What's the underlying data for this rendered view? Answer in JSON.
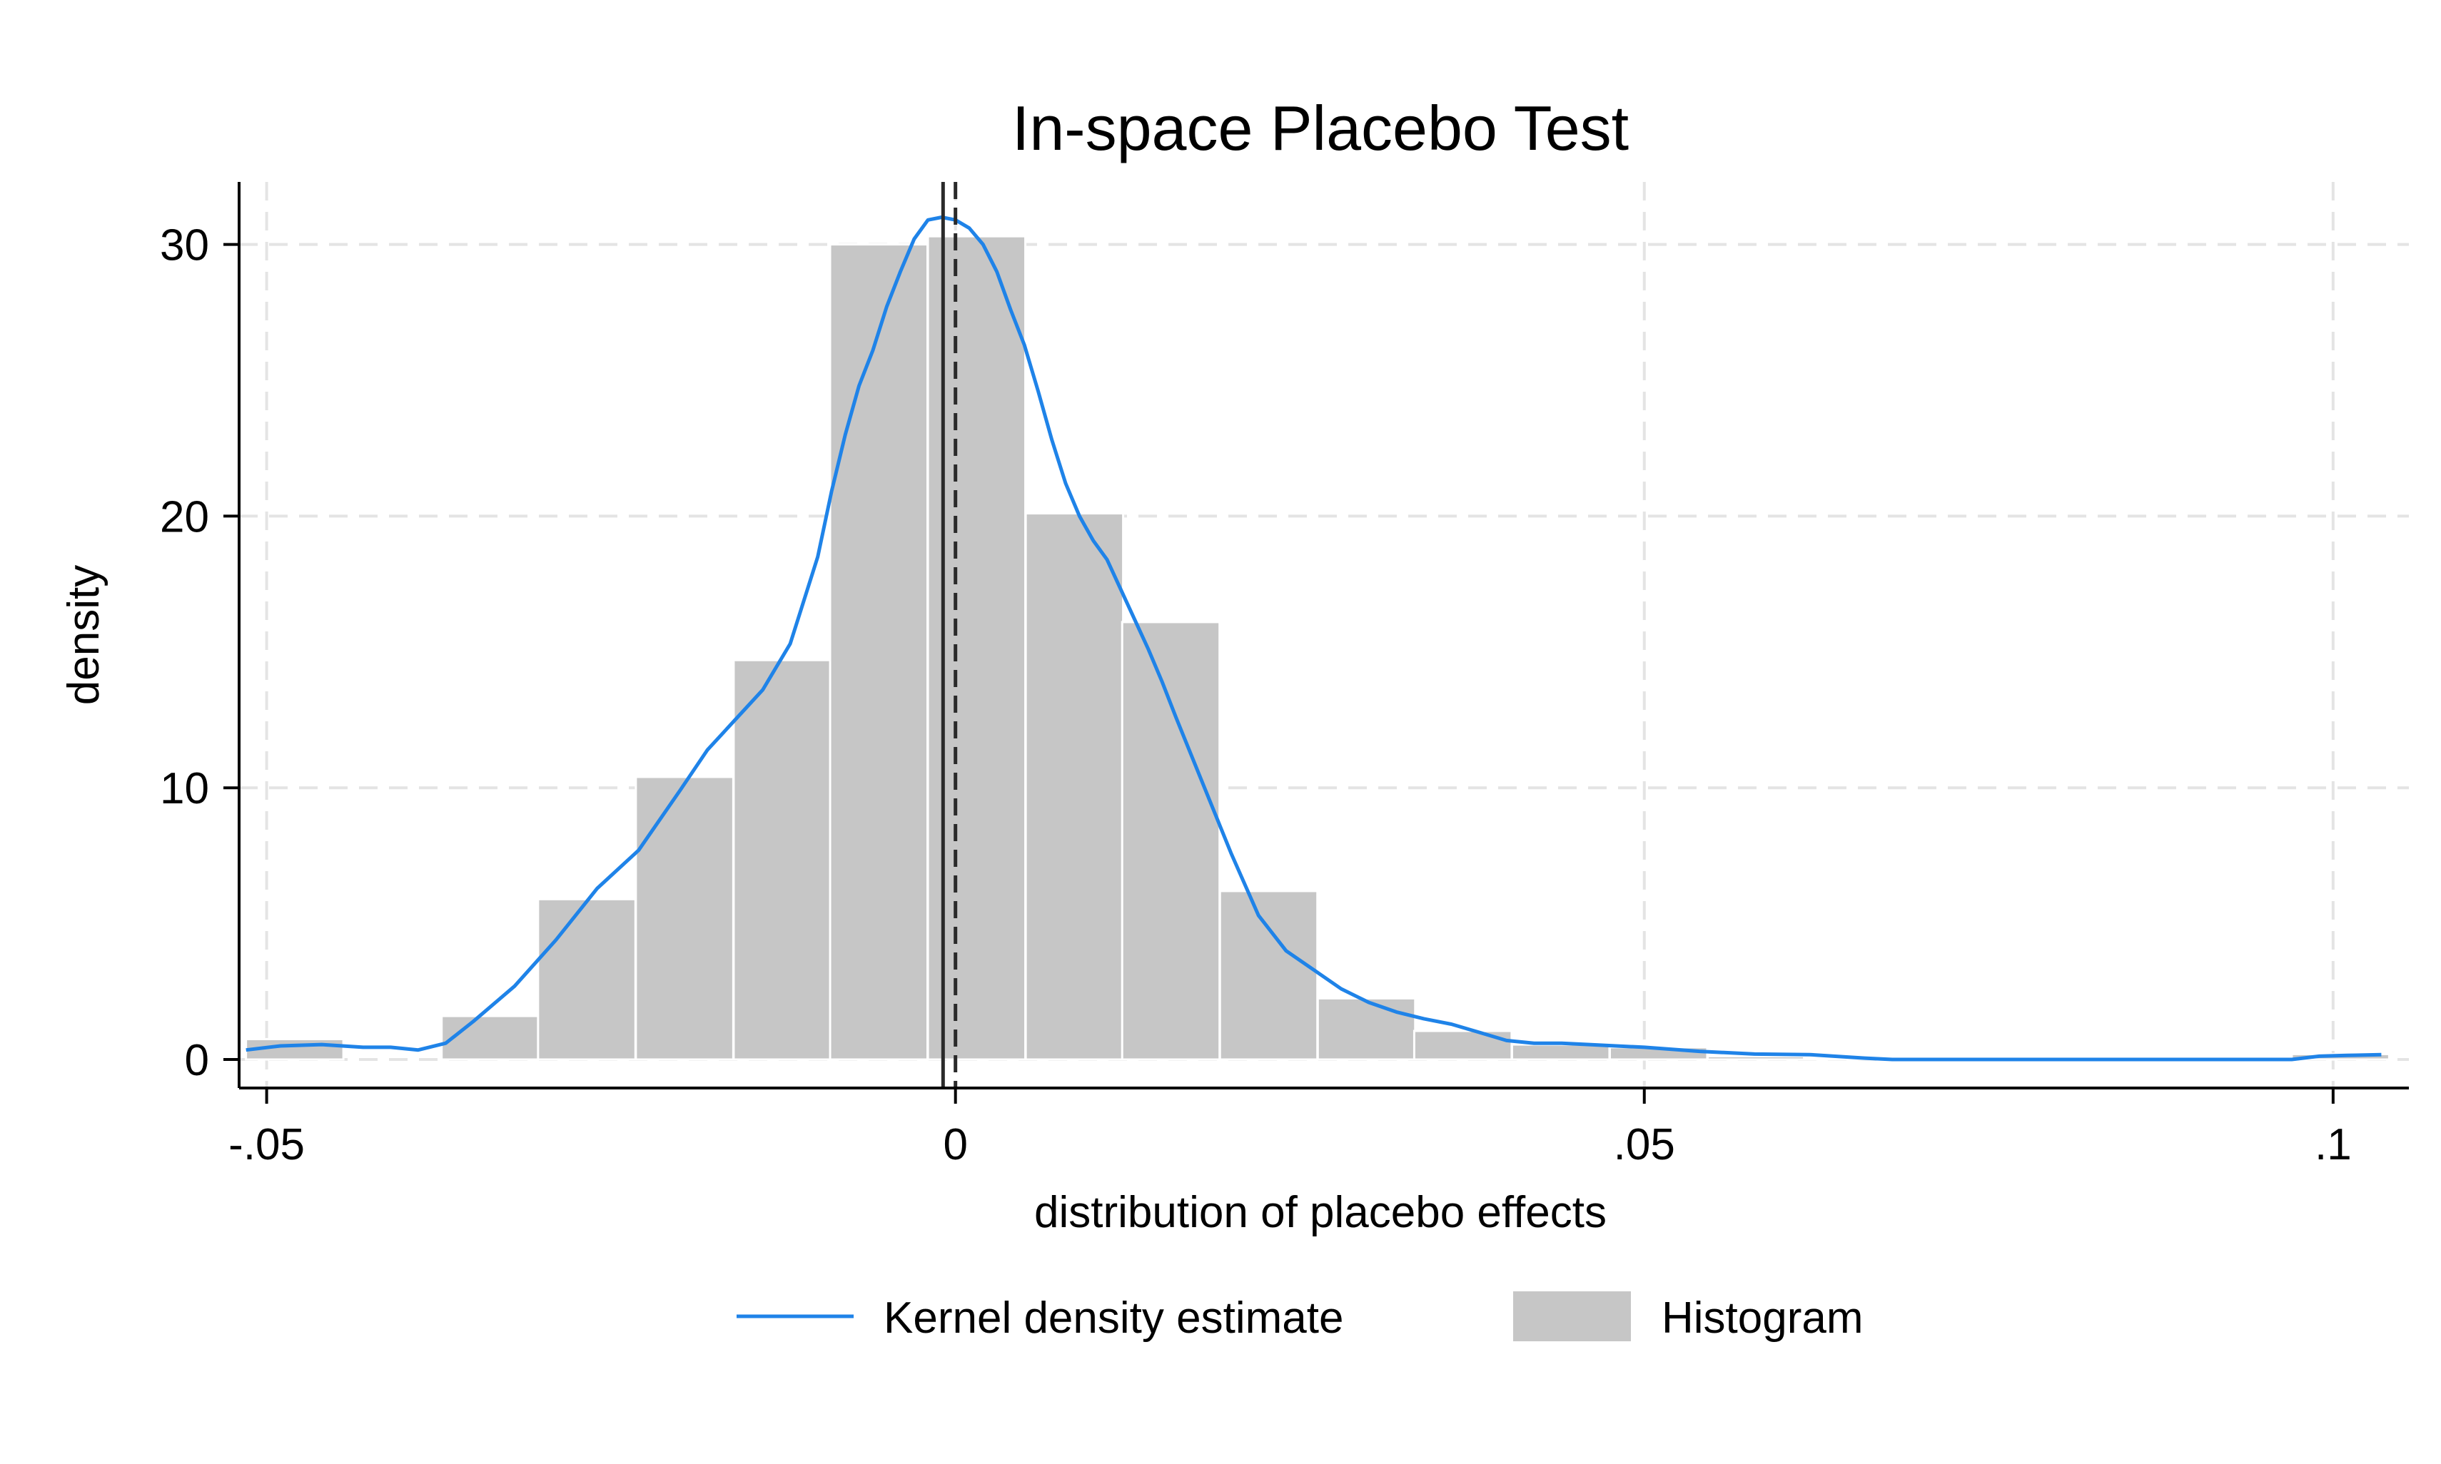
{
  "chart_data": {
    "type": "bar",
    "title": "In-space Placebo Test",
    "xlabel": "distribution of placebo effects",
    "ylabel": "density",
    "xlim": [
      -0.052,
      0.1055
    ],
    "ylim": [
      -1.05,
      32.3
    ],
    "xticks": [
      {
        "value": -0.05,
        "label": "-.05"
      },
      {
        "value": 0,
        "label": "0"
      },
      {
        "value": 0.05,
        "label": ".05"
      },
      {
        "value": 0.1,
        "label": ".1"
      }
    ],
    "yticks": [
      {
        "value": 0,
        "label": "0"
      },
      {
        "value": 10,
        "label": "10"
      },
      {
        "value": 20,
        "label": "20"
      },
      {
        "value": 30,
        "label": "30"
      }
    ],
    "grid": true,
    "legend_position": "bottom",
    "colors": {
      "histogram": "#c6c6c6",
      "kde": "#1f83e8",
      "grid": "#e4e4e4",
      "axis": "#000000",
      "vline": "#2a2a2a"
    },
    "series": [
      {
        "name": "Histogram",
        "type": "histogram",
        "bin_width": 0.00707,
        "bins": [
          {
            "start": -0.0515,
            "value": 0.75
          },
          {
            "start": -0.0444,
            "value": 0.0
          },
          {
            "start": -0.0373,
            "value": 1.6
          },
          {
            "start": -0.0303,
            "value": 5.9
          },
          {
            "start": -0.0232,
            "value": 10.4
          },
          {
            "start": -0.0161,
            "value": 14.7
          },
          {
            "start": -0.0091,
            "value": 30.0
          },
          {
            "start": -0.002,
            "value": 30.3
          },
          {
            "start": 0.0051,
            "value": 20.1
          },
          {
            "start": 0.0121,
            "value": 16.1
          },
          {
            "start": 0.0192,
            "value": 6.2
          },
          {
            "start": 0.0263,
            "value": 2.25
          },
          {
            "start": 0.0333,
            "value": 1.05
          },
          {
            "start": 0.0404,
            "value": 0.55
          },
          {
            "start": 0.0475,
            "value": 0.45
          },
          {
            "start": 0.0546,
            "value": 0.12
          },
          {
            "start": 0.0616,
            "value": 0.05
          },
          {
            "start": 0.0687,
            "value": 0.0
          },
          {
            "start": 0.0758,
            "value": 0.0
          },
          {
            "start": 0.0828,
            "value": 0.0
          },
          {
            "start": 0.0899,
            "value": 0.0
          },
          {
            "start": 0.097,
            "value": 0.2
          }
        ]
      },
      {
        "name": "Kernel density estimate",
        "type": "line",
        "points": [
          [
            -0.0515,
            0.35
          ],
          [
            -0.049,
            0.5
          ],
          [
            -0.046,
            0.55
          ],
          [
            -0.043,
            0.45
          ],
          [
            -0.041,
            0.45
          ],
          [
            -0.039,
            0.35
          ],
          [
            -0.037,
            0.6
          ],
          [
            -0.035,
            1.4
          ],
          [
            -0.032,
            2.7
          ],
          [
            -0.029,
            4.4
          ],
          [
            -0.026,
            6.3
          ],
          [
            -0.023,
            7.7
          ],
          [
            -0.02,
            9.9
          ],
          [
            -0.018,
            11.4
          ],
          [
            -0.016,
            12.5
          ],
          [
            -0.014,
            13.6
          ],
          [
            -0.012,
            15.3
          ],
          [
            -0.01,
            18.5
          ],
          [
            -0.009,
            20.9
          ],
          [
            -0.008,
            23.0
          ],
          [
            -0.007,
            24.8
          ],
          [
            -0.006,
            26.1
          ],
          [
            -0.005,
            27.7
          ],
          [
            -0.004,
            29.0
          ],
          [
            -0.003,
            30.2
          ],
          [
            -0.002,
            30.9
          ],
          [
            -0.001,
            31.0
          ],
          [
            0.0,
            30.9
          ],
          [
            0.001,
            30.6
          ],
          [
            0.002,
            30.0
          ],
          [
            0.003,
            29.0
          ],
          [
            0.004,
            27.6
          ],
          [
            0.005,
            26.3
          ],
          [
            0.006,
            24.6
          ],
          [
            0.007,
            22.8
          ],
          [
            0.008,
            21.2
          ],
          [
            0.009,
            20.0
          ],
          [
            0.01,
            19.1
          ],
          [
            0.011,
            18.4
          ],
          [
            0.012,
            17.3
          ],
          [
            0.013,
            16.2
          ],
          [
            0.014,
            15.1
          ],
          [
            0.015,
            13.9
          ],
          [
            0.016,
            12.6
          ],
          [
            0.018,
            10.1
          ],
          [
            0.02,
            7.6
          ],
          [
            0.022,
            5.3
          ],
          [
            0.024,
            4.0
          ],
          [
            0.026,
            3.3
          ],
          [
            0.028,
            2.6
          ],
          [
            0.03,
            2.1
          ],
          [
            0.032,
            1.75
          ],
          [
            0.034,
            1.5
          ],
          [
            0.036,
            1.3
          ],
          [
            0.038,
            1.0
          ],
          [
            0.04,
            0.7
          ],
          [
            0.042,
            0.6
          ],
          [
            0.044,
            0.6
          ],
          [
            0.046,
            0.55
          ],
          [
            0.05,
            0.45
          ],
          [
            0.054,
            0.3
          ],
          [
            0.058,
            0.2
          ],
          [
            0.062,
            0.18
          ],
          [
            0.066,
            0.05
          ],
          [
            0.068,
            0.0
          ],
          [
            0.075,
            0.0
          ],
          [
            0.085,
            0.0
          ],
          [
            0.095,
            0.0
          ],
          [
            0.097,
            0.0
          ],
          [
            0.099,
            0.12
          ],
          [
            0.101,
            0.15
          ],
          [
            0.1035,
            0.18
          ]
        ]
      }
    ],
    "reference_lines": [
      {
        "x": -0.0009,
        "style": "solid"
      },
      {
        "x": 0.0,
        "style": "dashed"
      }
    ]
  },
  "legend": {
    "items": [
      {
        "label": "Kernel density estimate",
        "symbol": "line",
        "color": "#1f83e8"
      },
      {
        "label": "Histogram",
        "symbol": "box",
        "color": "#c6c6c6"
      }
    ]
  }
}
